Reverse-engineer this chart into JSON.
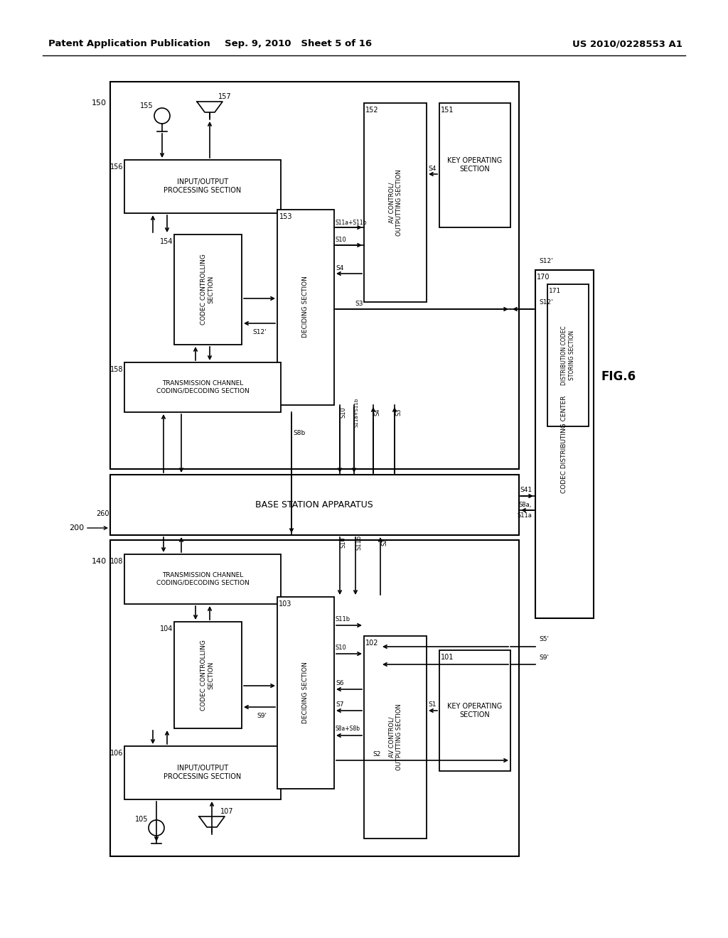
{
  "bg_color": "#ffffff",
  "header_left": "Patent Application Publication",
  "header_center": "Sep. 9, 2010   Sheet 5 of 16",
  "header_right": "US 2010/0228553 A1",
  "fig_label": "FIG.6"
}
